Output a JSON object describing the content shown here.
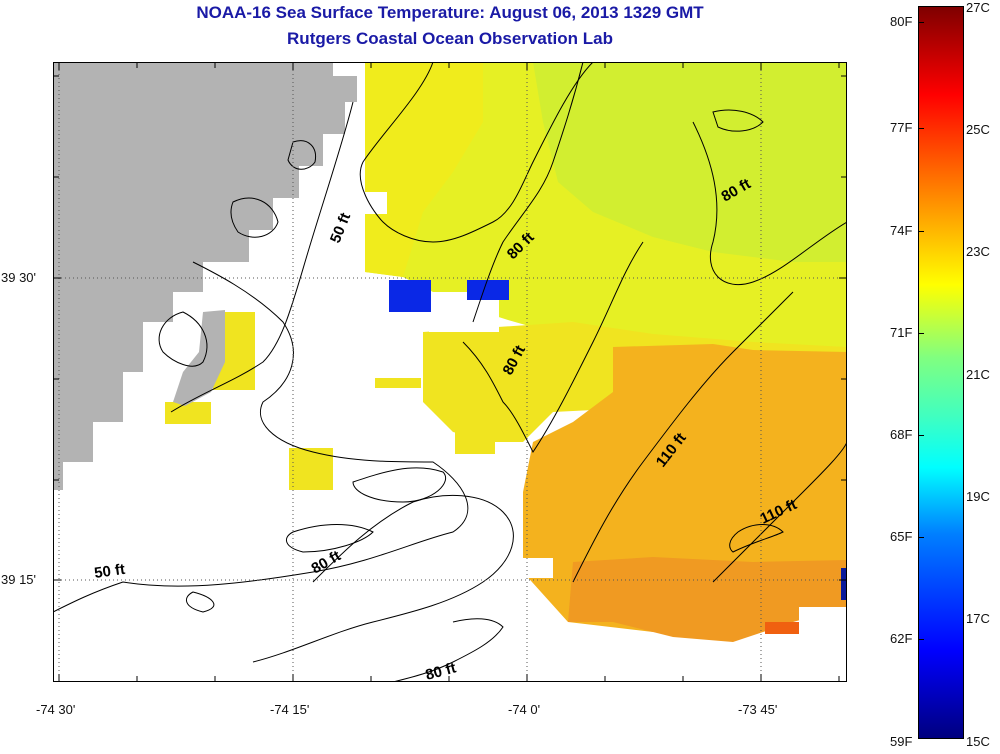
{
  "title": {
    "line1": "NOAA-16 Sea Surface Temperature:  August 06, 2013 1329 GMT",
    "line2": "Rutgers Coastal Ocean Observation Lab"
  },
  "axes": {
    "x_labels": [
      "-74 30'",
      "-74 15'",
      "-74 0'",
      "-73 45'"
    ],
    "y_labels": [
      "39 30'",
      "39 15'"
    ]
  },
  "colorbar": {
    "fahrenheit": [
      "80F",
      "77F",
      "74F",
      "71F",
      "68F",
      "65F",
      "62F",
      "59F"
    ],
    "celsius": [
      "27C",
      "25C",
      "23C",
      "21C",
      "19C",
      "17C",
      "15C"
    ]
  },
  "contours": {
    "labels": [
      "50 ft",
      "80 ft",
      "80 ft",
      "80 ft",
      "110 ft",
      "110 ft",
      "80 ft",
      "80 ft",
      "50 ft"
    ]
  },
  "colors": {
    "land": "#b3b3b3",
    "title": "#1a1aa6",
    "sst_yellow": "#f0ec1c",
    "sst_lime": "#d6f02c",
    "sst_green": "#88e88a",
    "sst_orange": "#f4b21e",
    "sst_deep_orange": "#f09420",
    "sst_red": "#f06010",
    "cloud_blue": "#0a28e6"
  }
}
